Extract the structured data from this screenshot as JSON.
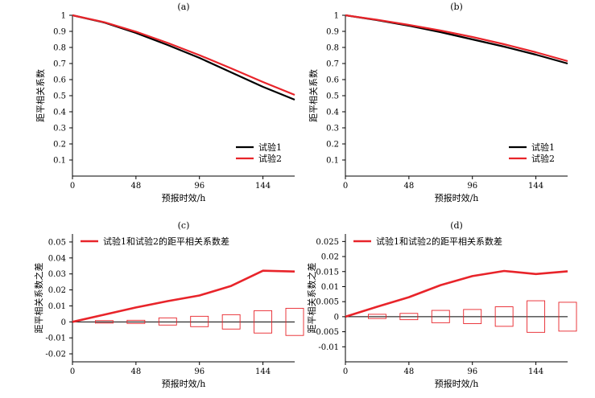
{
  "chart_data": [
    {
      "type": "line",
      "panel_label": "(a)",
      "xlabel": "预报时效/h",
      "ylabel": "距平相关系数",
      "xlim": [
        0,
        168
      ],
      "ylim": [
        0,
        1
      ],
      "x_ticks": [
        0,
        48,
        96,
        144
      ],
      "y_ticks": [
        0.1,
        0.2,
        0.3,
        0.4,
        0.5,
        0.6,
        0.7,
        0.8,
        0.9,
        1
      ],
      "y_tick_labels": [
        "0.1",
        "0.2",
        "0.3",
        "0.4",
        "0.5",
        "0.6",
        "0.7",
        "0.8",
        "0.9",
        "1"
      ],
      "legend_position": "bottom-right",
      "x": [
        0,
        24,
        48,
        72,
        96,
        120,
        144,
        168
      ],
      "series": [
        {
          "name": "试验1",
          "color": "#000000",
          "values": [
            1.0,
            0.955,
            0.89,
            0.815,
            0.735,
            0.645,
            0.555,
            0.475
          ]
        },
        {
          "name": "试验2",
          "color": "#e8242a",
          "values": [
            1.0,
            0.957,
            0.898,
            0.828,
            0.752,
            0.67,
            0.585,
            0.505
          ]
        }
      ]
    },
    {
      "type": "line",
      "panel_label": "(b)",
      "xlabel": "预报时效/h",
      "ylabel": "距平相关系数",
      "xlim": [
        0,
        168
      ],
      "ylim": [
        0,
        1
      ],
      "x_ticks": [
        0,
        48,
        96,
        144
      ],
      "y_ticks": [
        0.1,
        0.2,
        0.3,
        0.4,
        0.5,
        0.6,
        0.7,
        0.8,
        0.9,
        1
      ],
      "y_tick_labels": [
        "0.1",
        "0.2",
        "0.3",
        "0.4",
        "0.5",
        "0.6",
        "0.7",
        "0.8",
        "0.9",
        "1"
      ],
      "legend_position": "bottom-right",
      "x": [
        0,
        24,
        48,
        72,
        96,
        120,
        144,
        168
      ],
      "series": [
        {
          "name": "试验1",
          "color": "#000000",
          "values": [
            1.0,
            0.97,
            0.935,
            0.895,
            0.85,
            0.805,
            0.755,
            0.7
          ]
        },
        {
          "name": "试验2",
          "color": "#e8242a",
          "values": [
            1.0,
            0.972,
            0.94,
            0.905,
            0.865,
            0.82,
            0.77,
            0.715
          ]
        }
      ]
    },
    {
      "type": "line",
      "panel_label": "(c)",
      "xlabel": "预报时效/h",
      "ylabel": "距平相关系数之差",
      "xlim": [
        0,
        168
      ],
      "ylim": [
        -0.025,
        0.055
      ],
      "x_ticks": [
        0,
        48,
        96,
        144
      ],
      "y_ticks": [
        -0.02,
        -0.01,
        0,
        0.01,
        0.02,
        0.03,
        0.04,
        0.05
      ],
      "y_tick_labels": [
        "-0.02",
        "-0.01",
        "0",
        "0.01",
        "0.02",
        "0.03",
        "0.04",
        "0.05"
      ],
      "legend_position": "top-left",
      "x": [
        0,
        24,
        48,
        72,
        96,
        120,
        144,
        168
      ],
      "series": [
        {
          "name": "试验1和试验2的距平相关系数差",
          "color": "#e8242a",
          "values": [
            0,
            0.0045,
            0.009,
            0.013,
            0.0165,
            0.0225,
            0.032,
            0.0315
          ]
        }
      ],
      "boxes": {
        "x": [
          24,
          48,
          72,
          96,
          120,
          144,
          168
        ],
        "low": [
          -0.0008,
          -0.001,
          -0.002,
          -0.003,
          -0.0045,
          -0.007,
          -0.0085
        ],
        "high": [
          0.0008,
          0.001,
          0.0025,
          0.0035,
          0.0045,
          0.007,
          0.0085
        ]
      }
    },
    {
      "type": "line",
      "panel_label": "(d)",
      "xlabel": "预报时效/h",
      "ylabel": "距平相关系数之差",
      "xlim": [
        0,
        168
      ],
      "ylim": [
        -0.015,
        0.0275
      ],
      "x_ticks": [
        0,
        48,
        96,
        144
      ],
      "y_ticks": [
        -0.01,
        -0.005,
        0,
        0.005,
        0.01,
        0.015,
        0.02,
        0.025
      ],
      "y_tick_labels": [
        "-0.01",
        "-0.005",
        "0",
        "0.005",
        "0.01",
        "0.015",
        "0.02",
        "0.025"
      ],
      "legend_position": "top-left",
      "x": [
        0,
        24,
        48,
        72,
        96,
        120,
        144,
        168
      ],
      "series": [
        {
          "name": "试验1和试验2的距平相关系数差",
          "color": "#e8242a",
          "values": [
            0,
            0.0033,
            0.0065,
            0.0105,
            0.0135,
            0.0152,
            0.0142,
            0.0151
          ]
        }
      ],
      "boxes": {
        "x": [
          24,
          48,
          72,
          96,
          120,
          144,
          168
        ],
        "low": [
          -0.0006,
          -0.001,
          -0.002,
          -0.0023,
          -0.0032,
          -0.0052,
          -0.0048
        ],
        "high": [
          0.0008,
          0.0011,
          0.0021,
          0.0024,
          0.0033,
          0.0053,
          0.0048
        ]
      }
    }
  ]
}
